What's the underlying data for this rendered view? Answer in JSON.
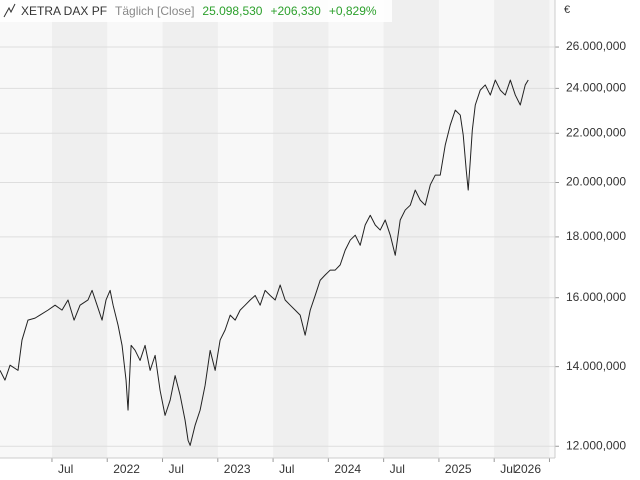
{
  "chart_data": {
    "type": "line",
    "subtitle": "Täglich [Close]",
    "annotations": [
      "25.098,530",
      "+206,330",
      "+0,829%"
    ],
    "annotation_color": "#2ca02c",
    "y_unit": "€",
    "log_scale": true,
    "grid": true,
    "xlim": [
      2021.03,
      2026.05
    ],
    "xticks": [
      {
        "value": 2021.5,
        "label": "Jul"
      },
      {
        "value": 2022,
        "label": "2022"
      },
      {
        "value": 2022.5,
        "label": "Jul"
      },
      {
        "value": 2023,
        "label": "2023"
      },
      {
        "value": 2023.5,
        "label": "Jul"
      },
      {
        "value": 2024,
        "label": "2024"
      },
      {
        "value": 2024.5,
        "label": "Jul"
      },
      {
        "value": 2025,
        "label": "2025"
      },
      {
        "value": 2025.5,
        "label": "Jul"
      },
      {
        "value": 2026,
        "label": "2026"
      }
    ],
    "ylim": [
      11730,
      28480
    ],
    "yticks": [
      {
        "value": 12000,
        "label": "12.000,000"
      },
      {
        "value": 14000,
        "label": "14.000,000"
      },
      {
        "value": 16000,
        "label": "16.000,000"
      },
      {
        "value": 18000,
        "label": "18.000,000"
      },
      {
        "value": 20000,
        "label": "20.000,000"
      },
      {
        "value": 22000,
        "label": "22.000,000"
      },
      {
        "value": 24000,
        "label": "24.000,000"
      },
      {
        "value": 26000,
        "label": "26.000,000"
      }
    ],
    "series": [
      {
        "name": "XETRA DAX PF",
        "color": "#222222",
        "x": [
          2021.03,
          2021.075,
          2021.121,
          2021.193,
          2021.229,
          2021.283,
          2021.347,
          2021.392,
          2021.464,
          2021.528,
          2021.591,
          2021.645,
          2021.7,
          2021.754,
          2021.826,
          2021.863,
          2021.908,
          2021.953,
          2021.989,
          2022.026,
          2022.053,
          2022.098,
          2022.134,
          2022.17,
          2022.188,
          2022.216,
          2022.252,
          2022.297,
          2022.342,
          2022.388,
          2022.433,
          2022.478,
          2022.523,
          2022.569,
          2022.614,
          2022.659,
          2022.704,
          2022.731,
          2022.75,
          2022.795,
          2022.84,
          2022.885,
          2022.931,
          2022.976,
          2023.021,
          2023.066,
          2023.112,
          2023.157,
          2023.202,
          2023.247,
          2023.293,
          2023.338,
          2023.383,
          2023.428,
          2023.474,
          2023.519,
          2023.564,
          2023.609,
          2023.655,
          2023.7,
          2023.745,
          2023.79,
          2023.836,
          2023.881,
          2023.926,
          2023.971,
          2024.017,
          2024.062,
          2024.107,
          2024.152,
          2024.198,
          2024.243,
          2024.288,
          2024.333,
          2024.379,
          2024.424,
          2024.469,
          2024.514,
          2024.56,
          2024.605,
          2024.65,
          2024.695,
          2024.741,
          2024.786,
          2024.831,
          2024.876,
          2024.922,
          2024.967,
          2025.012,
          2025.057,
          2025.103,
          2025.148,
          2025.193,
          2025.22,
          2025.247,
          2025.265,
          2025.284,
          2025.302,
          2025.329,
          2025.374,
          2025.419,
          2025.465,
          2025.51,
          2025.555,
          2025.6,
          2025.646,
          2025.691,
          2025.736,
          2025.781,
          2025.808
        ],
        "values": [
          13900,
          13640,
          14040,
          13900,
          14740,
          15320,
          15380,
          15470,
          15620,
          15770,
          15620,
          15930,
          15320,
          15770,
          15930,
          16230,
          15770,
          15320,
          15930,
          16230,
          15770,
          15170,
          14590,
          13640,
          12870,
          14590,
          14450,
          14170,
          14590,
          13900,
          14310,
          13370,
          12740,
          13120,
          13760,
          13250,
          12620,
          12140,
          12020,
          12500,
          12870,
          13500,
          14450,
          13900,
          14740,
          15030,
          15470,
          15320,
          15620,
          15770,
          15930,
          16070,
          15770,
          16230,
          16070,
          15930,
          16400,
          15930,
          15770,
          15620,
          15470,
          14880,
          15620,
          16070,
          16550,
          16720,
          16880,
          16880,
          17050,
          17540,
          17890,
          18060,
          17710,
          18420,
          18770,
          18420,
          18240,
          18600,
          18060,
          17370,
          18600,
          18960,
          19140,
          19710,
          19330,
          19140,
          19910,
          20290,
          20290,
          21500,
          22360,
          23010,
          22790,
          21920,
          20490,
          19710,
          20880,
          22130,
          23240,
          23920,
          24160,
          23690,
          24390,
          23920,
          23690,
          24390,
          23690,
          23240,
          24160,
          24390
        ]
      }
    ]
  }
}
